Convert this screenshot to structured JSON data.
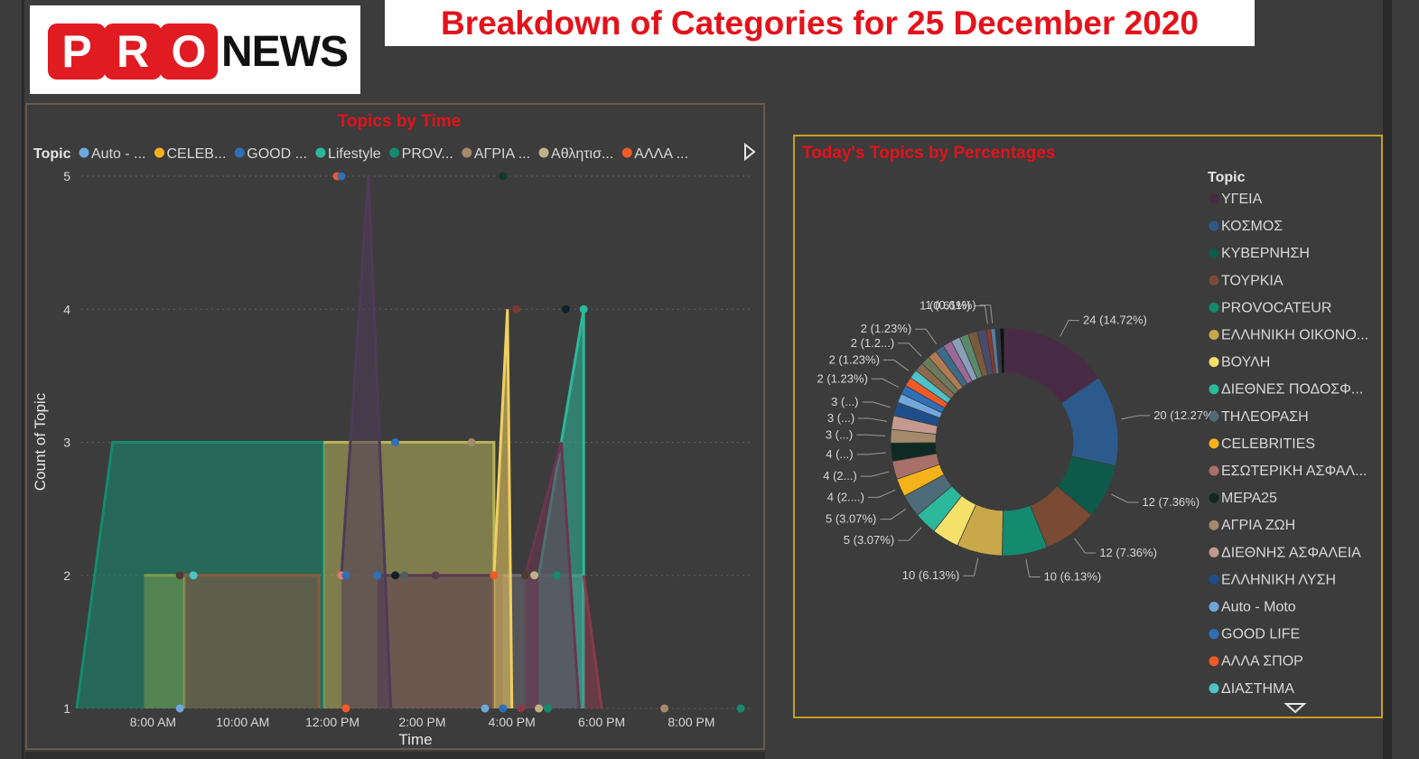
{
  "logo": {
    "letters": [
      "P",
      "R",
      "O"
    ],
    "word": "NEWS"
  },
  "page_title": "Breakdown of Categories for 25 December 2020",
  "left_chart_title": "Topics by Time",
  "right_chart_title": "Today's Topics by Percentages",
  "colors": {
    "title_red": "#e3121b",
    "panel_border_left": "#6a5a4b",
    "panel_border_right": "#c8a021"
  },
  "chart_data": [
    {
      "type": "area",
      "title": "Topics by Time",
      "xlabel": "Time",
      "ylabel": "Count of Topic",
      "legend_title": "Topic",
      "legend_placement": "top",
      "legend": [
        {
          "name": "Auto - ...",
          "color": "#6fa8dc"
        },
        {
          "name": "CELEB...",
          "color": "#f5b21a"
        },
        {
          "name": "GOOD ...",
          "color": "#2f6fb5"
        },
        {
          "name": "Lifestyle",
          "color": "#2cb89a"
        },
        {
          "name": "PROV...",
          "color": "#148a6e"
        },
        {
          "name": "ΑΓΡΙΑ ...",
          "color": "#a48a6a"
        },
        {
          "name": "Αθλητισ...",
          "color": "#c2b088"
        },
        {
          "name": "ΑΛΛΑ ...",
          "color": "#ef5a28"
        }
      ],
      "x_ticks": [
        "8:00 AM",
        "10:00 AM",
        "12:00 PM",
        "2:00 PM",
        "4:00 PM",
        "6:00 PM",
        "8:00 PM"
      ],
      "y_ticks": [
        "1",
        "2",
        "3",
        "4",
        "5"
      ],
      "ylim": [
        1,
        5
      ],
      "xlim_hours": [
        6.2,
        21.3
      ],
      "series": [
        {
          "color": "#148a6e",
          "points": [
            [
              6.3,
              1
            ],
            [
              7.1,
              3
            ],
            [
              11.8,
              3
            ],
            [
              11.8,
              1
            ]
          ]
        },
        {
          "color": "#b8b25a",
          "points": [
            [
              11.8,
              3
            ],
            [
              15.6,
              3
            ],
            [
              15.6,
              1
            ]
          ]
        },
        {
          "color": "#7a9a4f",
          "points": [
            [
              7.8,
              2
            ],
            [
              8.7,
              2
            ],
            [
              8.7,
              1
            ]
          ]
        },
        {
          "color": "#8a5a40",
          "points": [
            [
              8.7,
              2
            ],
            [
              11.7,
              2
            ],
            [
              11.7,
              1
            ]
          ]
        },
        {
          "color": "#5a3a50",
          "points": [
            [
              13.0,
              2
            ],
            [
              15.8,
              2
            ],
            [
              15.8,
              1
            ]
          ]
        },
        {
          "color": "#6a6a72",
          "points": [
            [
              15.8,
              2
            ],
            [
              16.6,
              2
            ],
            [
              17.6,
              2
            ],
            [
              17.6,
              1
            ]
          ]
        },
        {
          "color": "#4f3a58",
          "points": [
            [
              12.2,
              2
            ],
            [
              12.8,
              5
            ],
            [
              13.3,
              1
            ]
          ]
        },
        {
          "color": "#f0d060",
          "points": [
            [
              15.6,
              2
            ],
            [
              15.9,
              4
            ],
            [
              16.0,
              1
            ]
          ]
        },
        {
          "color": "#2cb89a",
          "points": [
            [
              16.6,
              2
            ],
            [
              17.6,
              4
            ],
            [
              17.6,
              1
            ]
          ]
        },
        {
          "color": "#6b3550",
          "points": [
            [
              16.3,
              2
            ],
            [
              17.1,
              3
            ],
            [
              17.5,
              1
            ]
          ]
        },
        {
          "color": "#8a3a4a",
          "points": [
            [
              17.6,
              2
            ],
            [
              18.0,
              1
            ]
          ]
        }
      ],
      "points": [
        {
          "x": 12.1,
          "y": 5,
          "color": "#ef5a28"
        },
        {
          "x": 12.2,
          "y": 5,
          "color": "#2f6fb5"
        },
        {
          "x": 15.8,
          "y": 5,
          "color": "#0f3a2a"
        },
        {
          "x": 16.1,
          "y": 4,
          "color": "#7a3a30"
        },
        {
          "x": 17.2,
          "y": 4,
          "color": "#102028"
        },
        {
          "x": 17.6,
          "y": 4,
          "color": "#2cb89a"
        },
        {
          "x": 13.4,
          "y": 3,
          "color": "#2f6fb5"
        },
        {
          "x": 15.1,
          "y": 3,
          "color": "#a48a6a"
        },
        {
          "x": 8.6,
          "y": 2,
          "color": "#4f3a30"
        },
        {
          "x": 8.9,
          "y": 2,
          "color": "#4ec1c9"
        },
        {
          "x": 12.2,
          "y": 2,
          "color": "#e07a7a"
        },
        {
          "x": 12.3,
          "y": 2,
          "color": "#2f6fb5"
        },
        {
          "x": 13.0,
          "y": 2,
          "color": "#2f6fb5"
        },
        {
          "x": 13.4,
          "y": 2,
          "color": "#102028"
        },
        {
          "x": 13.6,
          "y": 2,
          "color": "#555b62"
        },
        {
          "x": 14.3,
          "y": 2,
          "color": "#5a3a50"
        },
        {
          "x": 15.6,
          "y": 2,
          "color": "#ef5a28"
        },
        {
          "x": 16.3,
          "y": 2,
          "color": "#4f3a30"
        },
        {
          "x": 16.5,
          "y": 2,
          "color": "#c2b088"
        },
        {
          "x": 17.0,
          "y": 2,
          "color": "#148a6e"
        },
        {
          "x": 8.6,
          "y": 1,
          "color": "#6fa8dc"
        },
        {
          "x": 12.3,
          "y": 1,
          "color": "#ef5a28"
        },
        {
          "x": 15.4,
          "y": 1,
          "color": "#6fa8dc"
        },
        {
          "x": 15.8,
          "y": 1,
          "color": "#2f6fb5"
        },
        {
          "x": 16.2,
          "y": 1,
          "color": "#8a3a4a"
        },
        {
          "x": 16.6,
          "y": 1,
          "color": "#c2b088"
        },
        {
          "x": 16.8,
          "y": 1,
          "color": "#148a6e"
        },
        {
          "x": 19.4,
          "y": 1,
          "color": "#a48a6a"
        },
        {
          "x": 21.1,
          "y": 1,
          "color": "#148a6e"
        }
      ]
    },
    {
      "type": "pie",
      "donut": true,
      "title": "Today's Topics by Percentages",
      "legend_title": "Topic",
      "legend_placement": "right",
      "legend": [
        {
          "name": "ΥΓΕΙΑ",
          "color": "#4a2b45"
        },
        {
          "name": "ΚΟΣΜΟΣ",
          "color": "#2d5a8c"
        },
        {
          "name": "ΚΥΒΕΡΝΗΣΗ",
          "color": "#0e5a4a"
        },
        {
          "name": "ΤΟΥΡΚΙΑ",
          "color": "#7a4a32"
        },
        {
          "name": "PROVOCATEUR",
          "color": "#148a6e"
        },
        {
          "name": "ΕΛΛΗΝΙΚΗ ΟΙΚΟΝΟ...",
          "color": "#c9a84a"
        },
        {
          "name": "ΒΟΥΛΗ",
          "color": "#f5e06a"
        },
        {
          "name": "ΔΙΕΘΝΕΣ ΠΟΔΟΣΦ...",
          "color": "#2cb89a"
        },
        {
          "name": "ΤΗΛΕΟΡΑΣΗ",
          "color": "#4f6a78"
        },
        {
          "name": "CELEBRITIES",
          "color": "#f5b21a"
        },
        {
          "name": "ΕΣΩΤΕΡΙΚΗ ΑΣΦΑΛ...",
          "color": "#a87068"
        },
        {
          "name": "ΜΕΡΑ25",
          "color": "#0f2a22"
        },
        {
          "name": "ΑΓΡΙΑ ΖΩΗ",
          "color": "#a48a6a"
        },
        {
          "name": "ΔΙΕΘΝΗΣ ΑΣΦΑΛΕΙΑ",
          "color": "#c49a90"
        },
        {
          "name": "ΕΛΛΗΝΙΚΗ ΛΥΣΗ",
          "color": "#1f4f8a"
        },
        {
          "name": "Auto - Moto",
          "color": "#6fa8dc"
        },
        {
          "name": "GOOD LIFE",
          "color": "#2f6fb5"
        },
        {
          "name": "ΑΛΛΑ ΣΠΟΡ",
          "color": "#ef5a28"
        },
        {
          "name": "ΔΙΑΣΤΗΜΑ",
          "color": "#4ec1c9"
        }
      ],
      "values": [
        24,
        20,
        12,
        12,
        10,
        10,
        6,
        5,
        5,
        4,
        4,
        4,
        3,
        3,
        3,
        2,
        2,
        2,
        2,
        2,
        2,
        2,
        2,
        2,
        2,
        2,
        2,
        2,
        1,
        1,
        1,
        1
      ],
      "slice_colors": [
        "#4a2b45",
        "#2d5a8c",
        "#0e5a4a",
        "#7a4a32",
        "#148a6e",
        "#c9a84a",
        "#f5e06a",
        "#2cb89a",
        "#4f6a78",
        "#f5b21a",
        "#a87068",
        "#0f2a22",
        "#a48a6a",
        "#c49a90",
        "#1f4f8a",
        "#6fa8dc",
        "#2f6fb5",
        "#ef5a28",
        "#4ec1c9",
        "#8a6a4a",
        "#6a7a5a",
        "#b07a52",
        "#3e6a8a",
        "#9a6a9a",
        "#8aa0b8",
        "#5a8a6a",
        "#7a5a3a",
        "#4a4a6a",
        "#8a3a2a",
        "#5a7a9a",
        "#2a3a4a",
        "#111111"
      ],
      "slice_labels": [
        {
          "i": 0,
          "text": "24 (14.72%)"
        },
        {
          "i": 1,
          "text": "20 (12.27%)"
        },
        {
          "i": 2,
          "text": "12 (7.36%)"
        },
        {
          "i": 3,
          "text": "12 (7.36%)"
        },
        {
          "i": 4,
          "text": "10 (6.13%)"
        },
        {
          "i": 5,
          "text": "10 (6.13%)"
        },
        {
          "i": 7,
          "text": "5 (3.07%)"
        },
        {
          "i": 8,
          "text": "5 (3.07%)"
        },
        {
          "i": 9,
          "text": "4 (2....)"
        },
        {
          "i": 10,
          "text": "4 (2...)"
        },
        {
          "i": 11,
          "text": "4 (...)"
        },
        {
          "i": 12,
          "text": "3 (...)"
        },
        {
          "i": 13,
          "text": "3 (...)"
        },
        {
          "i": 14,
          "text": "3 (...)"
        },
        {
          "i": 16,
          "text": "2 (1.23%)"
        },
        {
          "i": 18,
          "text": "2 (1.23%)"
        },
        {
          "i": 20,
          "text": "2 (1.2...)"
        },
        {
          "i": 22,
          "text": "2 (1.23%)"
        },
        {
          "i": 28,
          "text": "1 (0.61%)"
        },
        {
          "i": 29,
          "text": "1 (0.61%)"
        }
      ]
    }
  ]
}
